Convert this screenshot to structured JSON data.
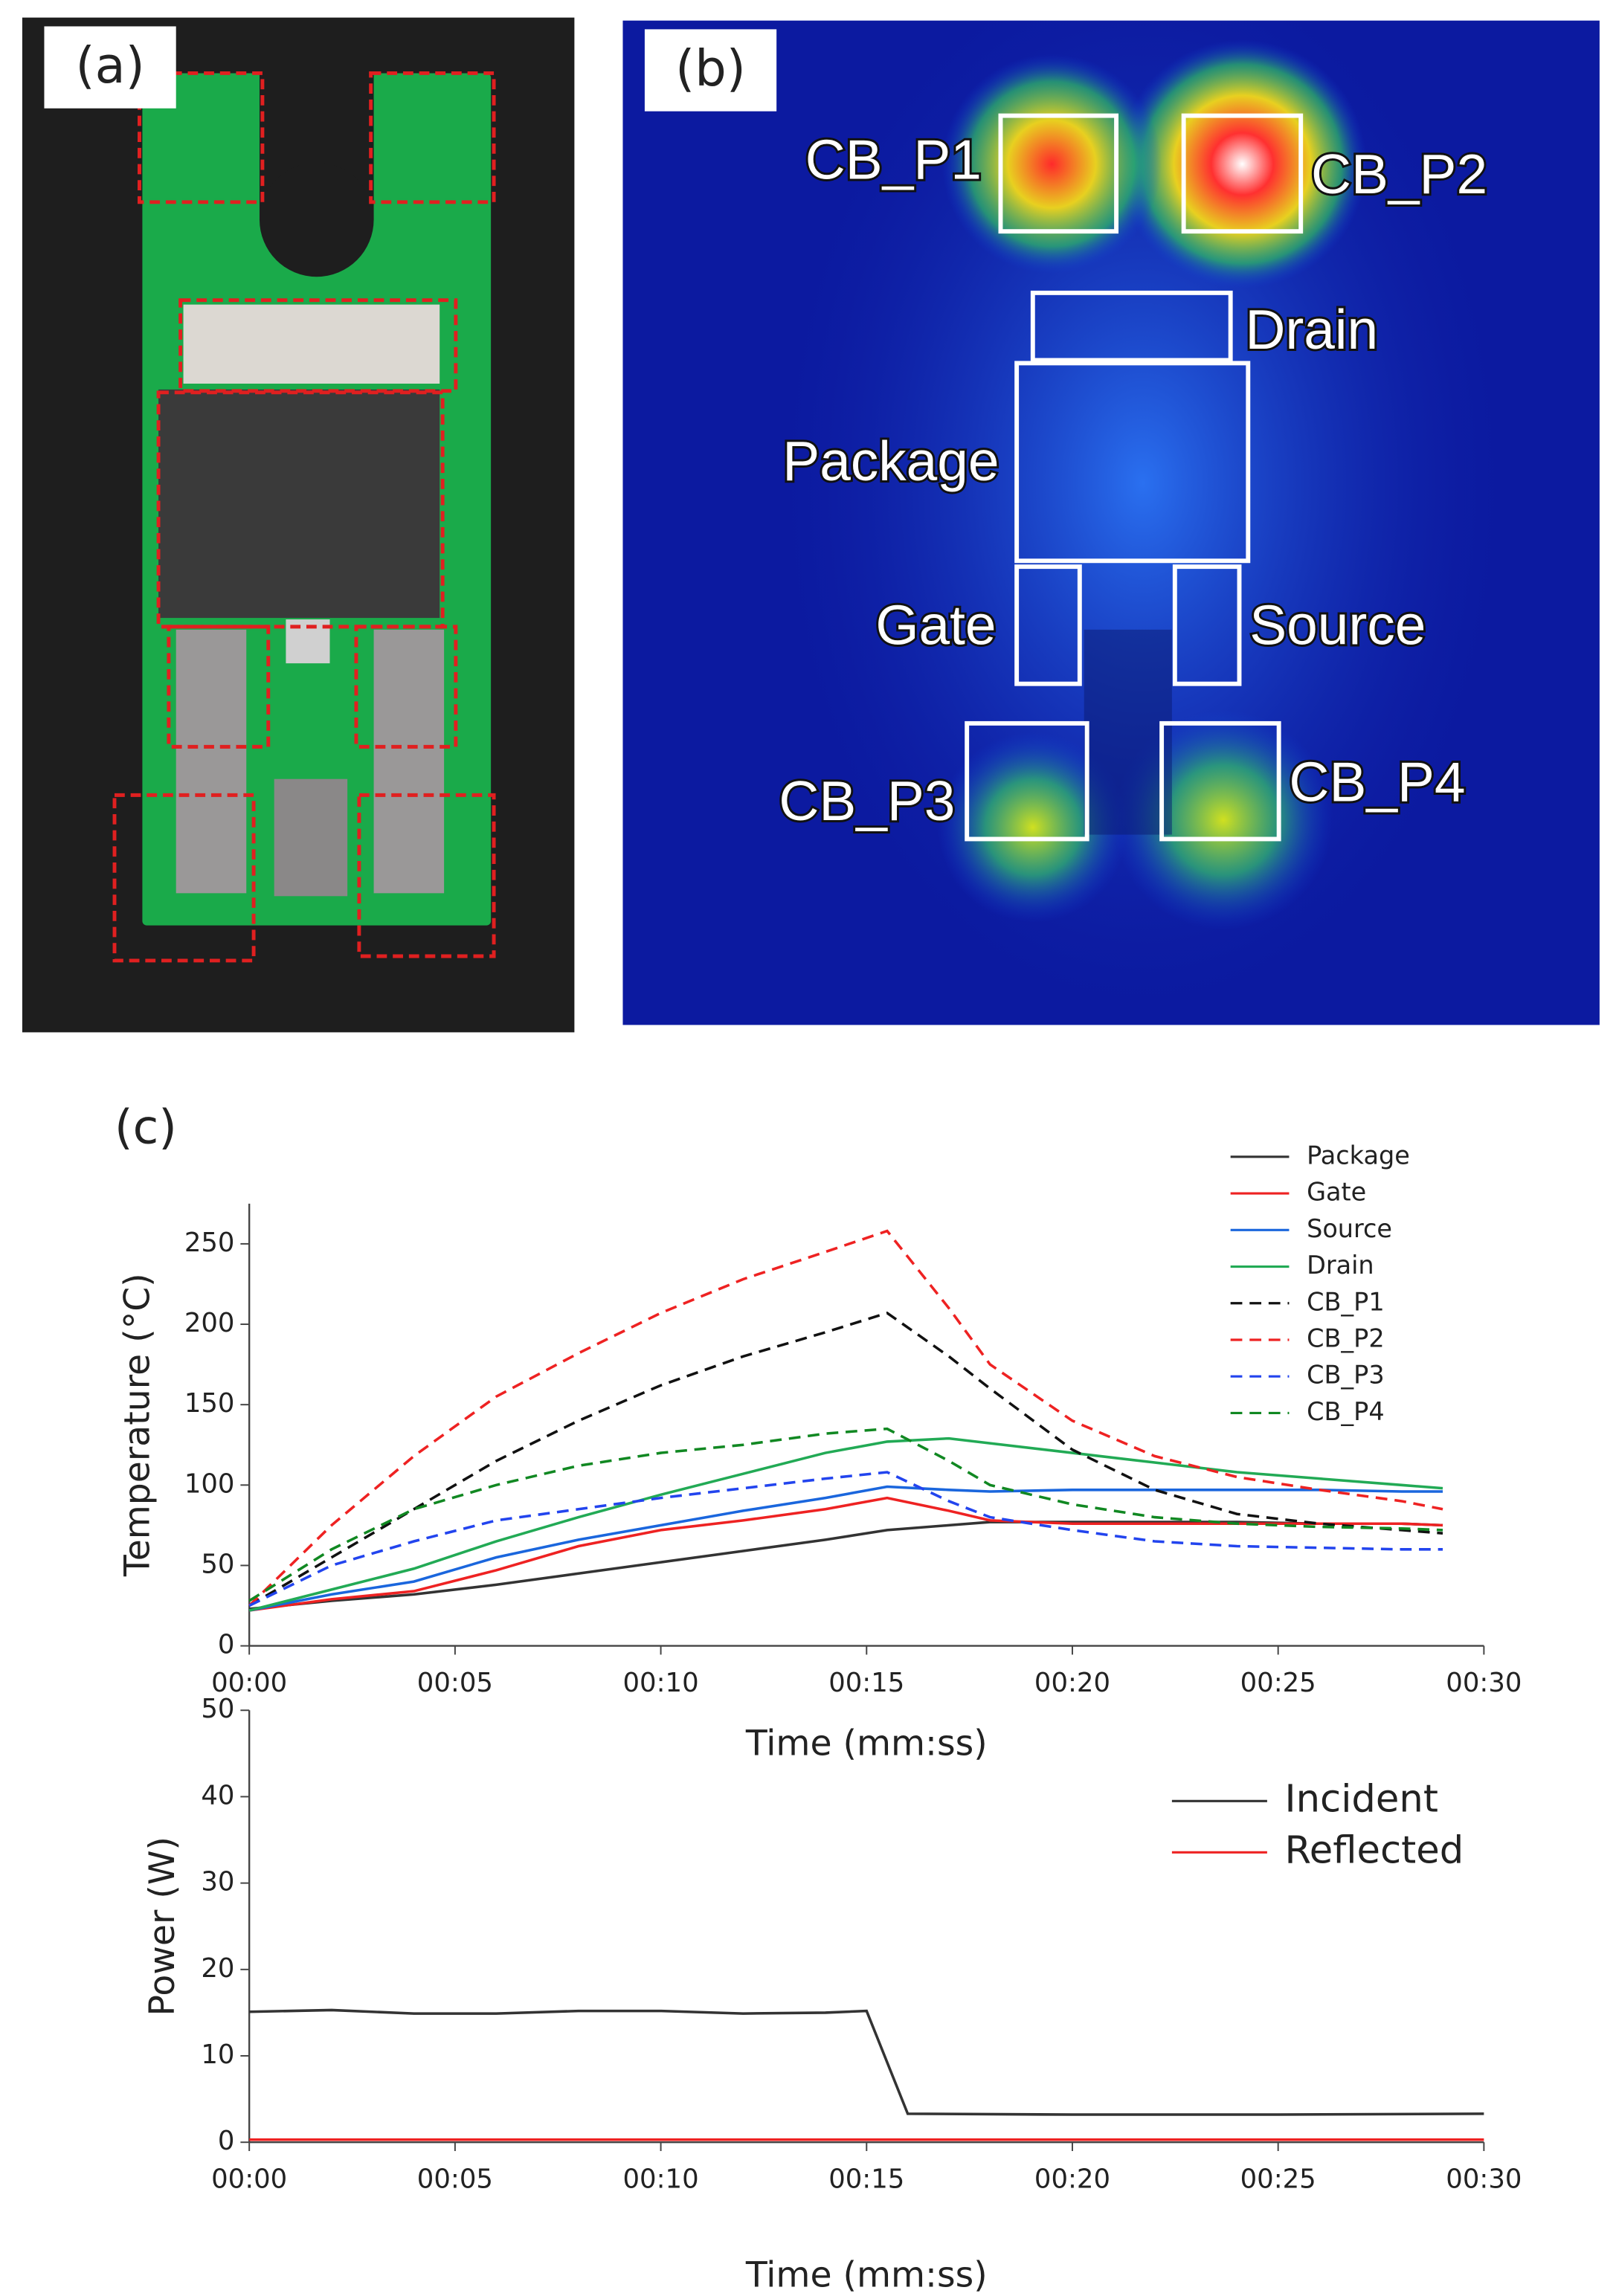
{
  "panels": {
    "a": "(a)",
    "b": "(b)",
    "c": "(c)"
  },
  "thermal_labels": [
    "CB_P1",
    "CB_P2",
    "Drain",
    "Package",
    "Gate",
    "Source",
    "CB_P3",
    "CB_P4"
  ],
  "chart_data": [
    {
      "type": "line",
      "xlabel": "Time (mm:ss)",
      "ylabel": "Temperature (°C)",
      "x": [
        0,
        2,
        4,
        6,
        8,
        10,
        12,
        14,
        15.5,
        17,
        18,
        20,
        22,
        24,
        26,
        28,
        29
      ],
      "xlim": [
        0,
        30
      ],
      "ylim": [
        0,
        275
      ],
      "xticks": [
        {
          "value": 0,
          "label": "00:00"
        },
        {
          "value": 5,
          "label": "00:05"
        },
        {
          "value": 10,
          "label": "00:10"
        },
        {
          "value": 15,
          "label": "00:15"
        },
        {
          "value": 20,
          "label": "00:20"
        },
        {
          "value": 25,
          "label": "00:25"
        },
        {
          "value": 30,
          "label": "00:30"
        }
      ],
      "yticks": [
        0,
        50,
        100,
        150,
        200,
        250
      ],
      "legend": "upper right",
      "series": [
        {
          "name": "Package",
          "color": "#333333",
          "dash": false,
          "values": [
            23,
            28,
            32,
            38,
            45,
            52,
            59,
            66,
            72,
            75,
            77,
            77,
            77,
            77,
            76,
            76,
            75
          ]
        },
        {
          "name": "Gate",
          "color": "#ee2222",
          "dash": false,
          "values": [
            22,
            29,
            34,
            47,
            62,
            72,
            78,
            85,
            92,
            84,
            78,
            76,
            76,
            76,
            76,
            76,
            75
          ]
        },
        {
          "name": "Source",
          "color": "#1a66dd",
          "dash": false,
          "values": [
            22,
            32,
            40,
            55,
            66,
            75,
            84,
            92,
            99,
            97,
            96,
            97,
            97,
            97,
            97,
            96,
            96
          ]
        },
        {
          "name": "Drain",
          "color": "#22aa55",
          "dash": false,
          "values": [
            22,
            35,
            48,
            65,
            80,
            94,
            107,
            120,
            127,
            129,
            126,
            120,
            114,
            108,
            104,
            100,
            98
          ]
        },
        {
          "name": "CB_P1",
          "color": "#111111",
          "dash": true,
          "values": [
            25,
            55,
            85,
            115,
            140,
            162,
            180,
            195,
            207,
            180,
            160,
            122,
            97,
            82,
            76,
            72,
            70
          ]
        },
        {
          "name": "CB_P2",
          "color": "#ee2222",
          "dash": true,
          "values": [
            25,
            75,
            118,
            155,
            182,
            207,
            228,
            245,
            258,
            210,
            175,
            140,
            118,
            105,
            97,
            90,
            85
          ]
        },
        {
          "name": "CB_P3",
          "color": "#2244ee",
          "dash": true,
          "values": [
            25,
            50,
            65,
            78,
            85,
            92,
            98,
            104,
            108,
            90,
            80,
            72,
            65,
            62,
            61,
            60,
            60
          ]
        },
        {
          "name": "CB_P4",
          "color": "#118822",
          "dash": true,
          "values": [
            28,
            60,
            85,
            100,
            112,
            120,
            125,
            132,
            135,
            115,
            100,
            88,
            80,
            76,
            74,
            73,
            72
          ]
        }
      ]
    },
    {
      "type": "line",
      "xlabel": "Time (mm:ss)",
      "ylabel": "Power (W)",
      "x": [
        0,
        2,
        4,
        6,
        8,
        10,
        12,
        14,
        15,
        16,
        20,
        25,
        30
      ],
      "xlim": [
        0,
        30
      ],
      "ylim": [
        0,
        50
      ],
      "xticks": [
        {
          "value": 0,
          "label": "00:00"
        },
        {
          "value": 5,
          "label": "00:05"
        },
        {
          "value": 10,
          "label": "00:10"
        },
        {
          "value": 15,
          "label": "00:15"
        },
        {
          "value": 20,
          "label": "00:20"
        },
        {
          "value": 25,
          "label": "00:25"
        },
        {
          "value": 30,
          "label": "00:30"
        }
      ],
      "yticks": [
        0,
        10,
        20,
        30,
        40,
        50
      ],
      "legend": "upper right",
      "series": [
        {
          "name": "Incident",
          "color": "#333333",
          "dash": false,
          "values": [
            15.1,
            15.3,
            14.9,
            14.9,
            15.2,
            15.2,
            14.9,
            15,
            15.2,
            3.3,
            3.2,
            3.2,
            3.3
          ]
        },
        {
          "name": "Reflected",
          "color": "#ee2222",
          "dash": false,
          "values": [
            0.3,
            0.3,
            0.3,
            0.3,
            0.3,
            0.3,
            0.3,
            0.3,
            0.3,
            0.3,
            0.3,
            0.3,
            0.3
          ]
        }
      ]
    }
  ]
}
